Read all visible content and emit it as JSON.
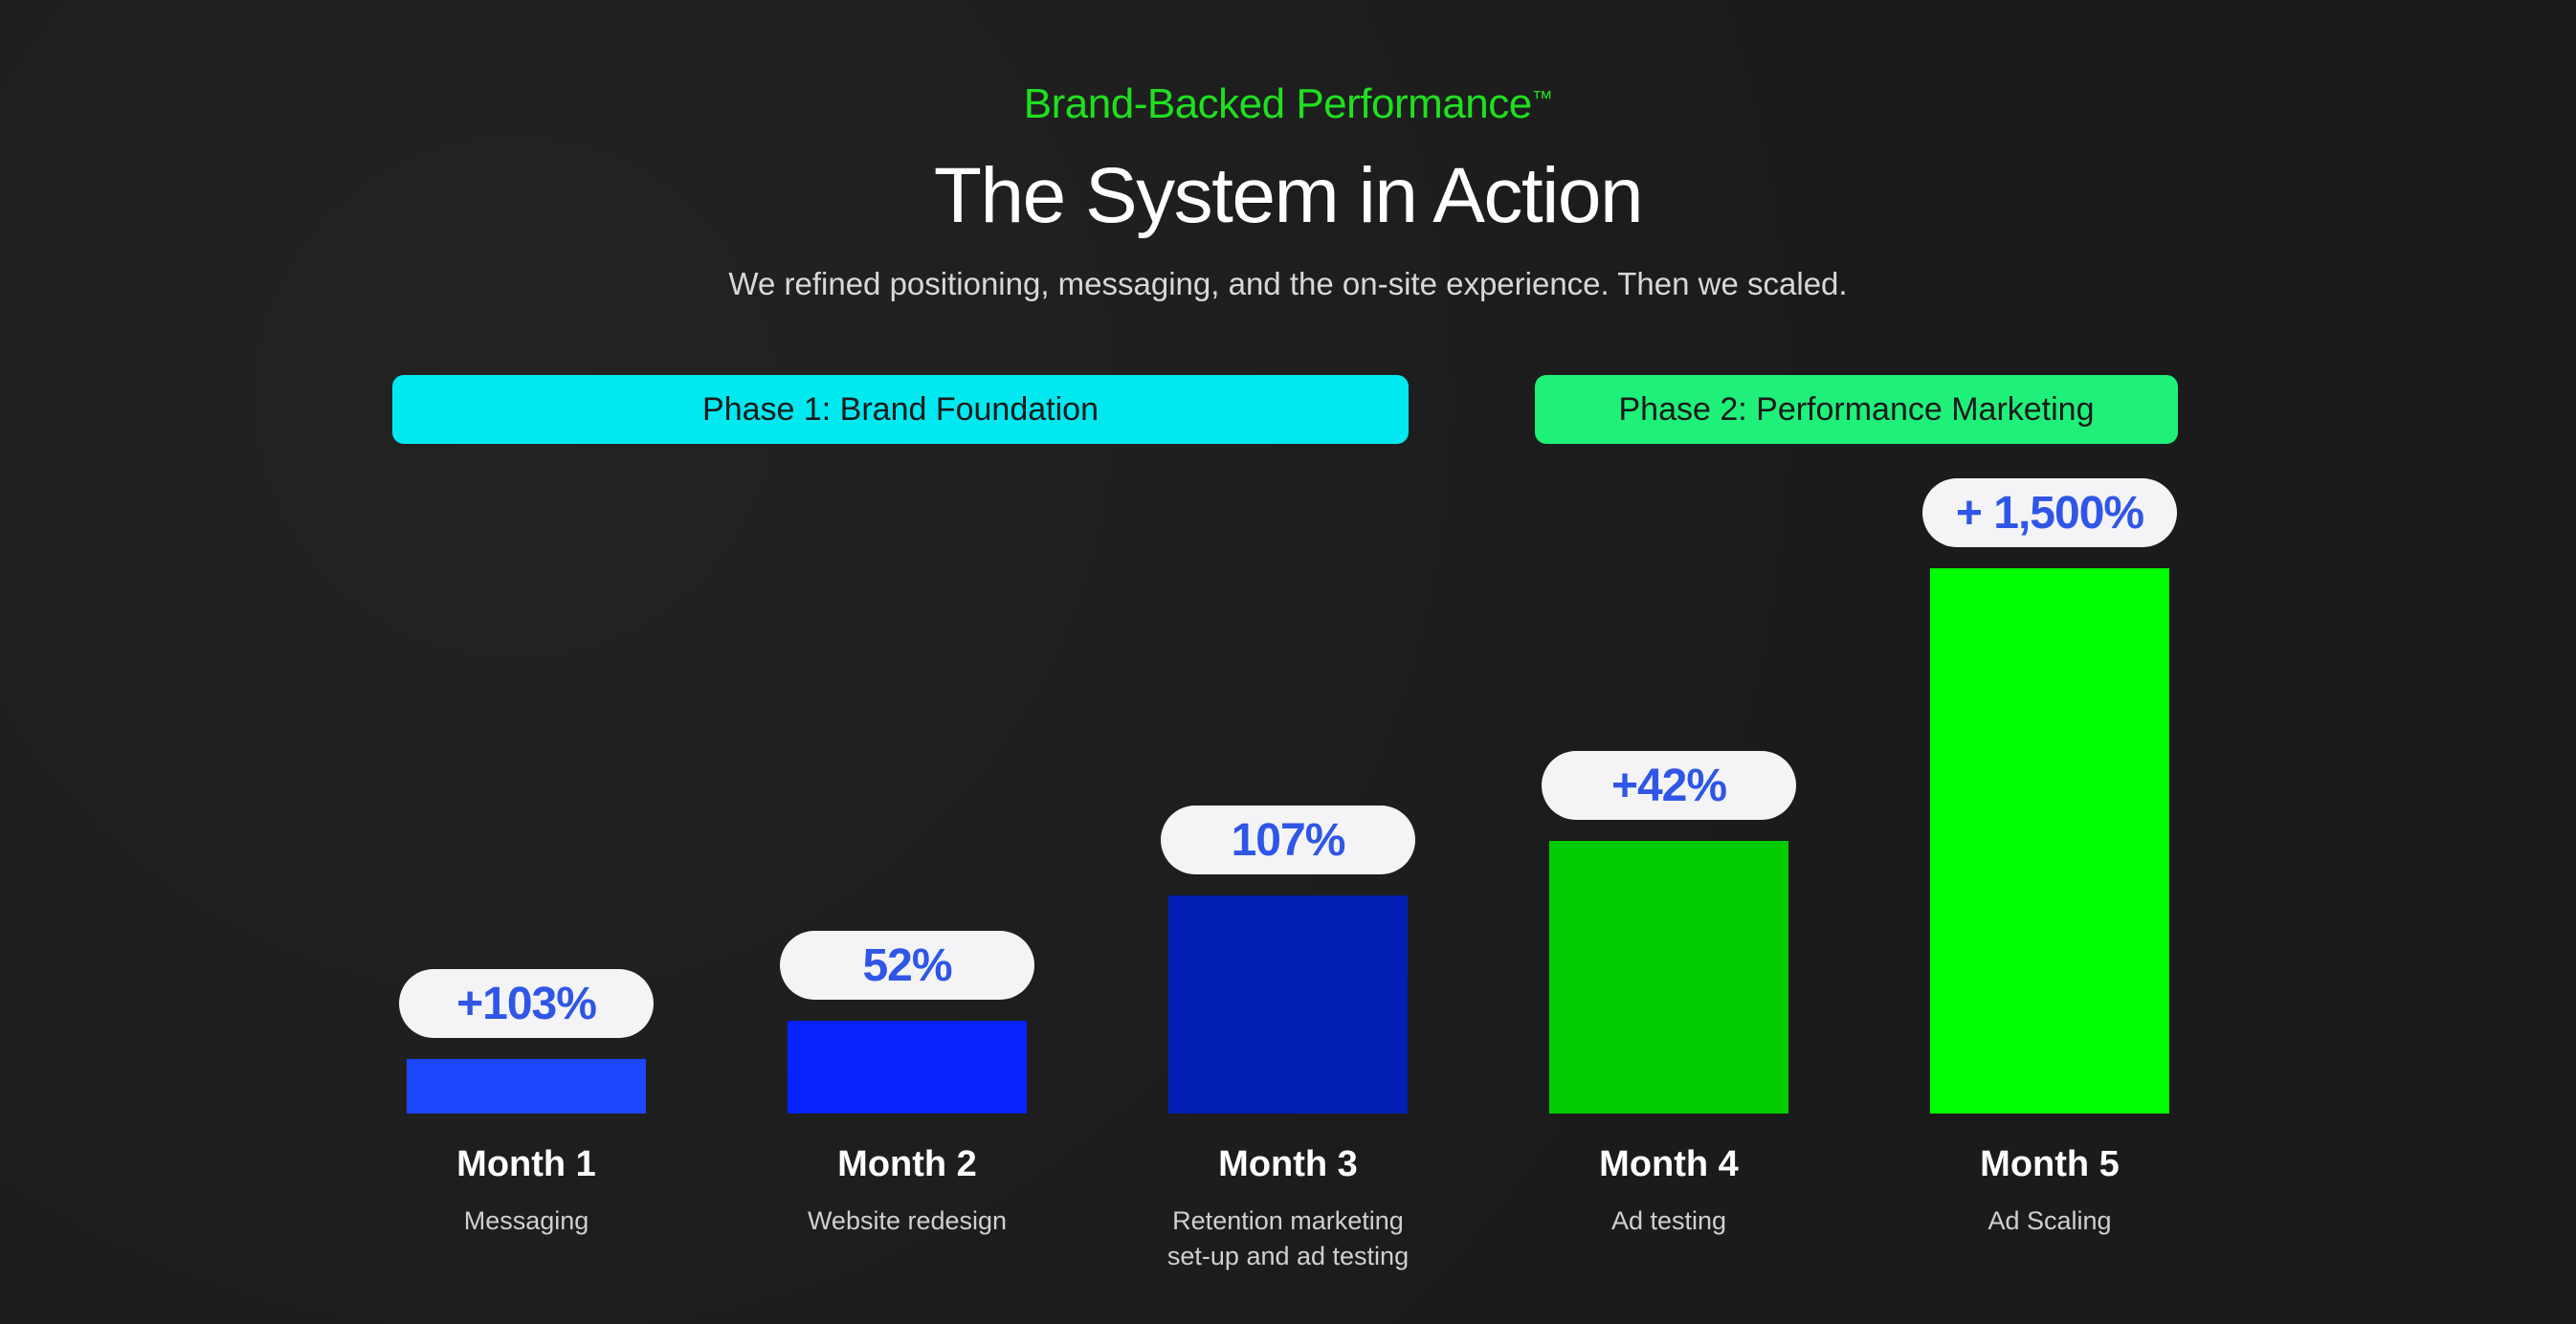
{
  "header": {
    "eyebrow": "Brand-Backed Performance",
    "eyebrow_mark": "™",
    "title": "The System in Action",
    "subtitle": "We refined positioning, messaging, and the on-site experience. Then we scaled."
  },
  "phases": [
    {
      "label": "Phase 1: Brand Foundation",
      "color": "#00e8f0"
    },
    {
      "label": "Phase 2: Performance Marketing",
      "color": "#1ff07a"
    }
  ],
  "chart_data": {
    "type": "bar",
    "categories": [
      "Month 1",
      "Month 2",
      "Month 3",
      "Month 4",
      "Month 5"
    ],
    "descriptions": [
      "Messaging",
      "Website redesign",
      "Retention marketing set-up and ad testing",
      "Ad testing",
      "Ad Scaling"
    ],
    "data_labels": [
      "+103%",
      "52%",
      "107%",
      "+42%",
      "+ 1,500%"
    ],
    "values": [
      10,
      17,
      40,
      50,
      100
    ],
    "bar_colors": [
      "#1c47ff",
      "#0722ff",
      "#021eb3",
      "#00cc00",
      "#00ff00"
    ],
    "ylim": [
      0,
      100
    ],
    "grid": false,
    "legend": "none",
    "title": "The System in Action",
    "xlabel": "",
    "ylabel": ""
  }
}
